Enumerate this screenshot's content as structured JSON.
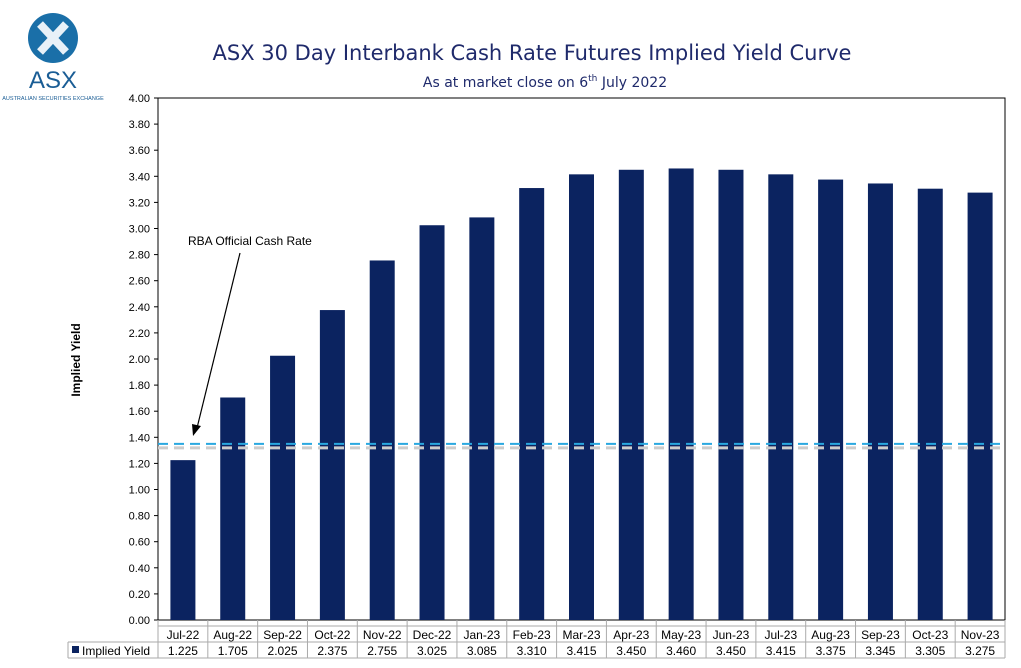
{
  "logo": {
    "text": "ASX",
    "subtext": "AUSTRALIAN SECURITIES EXCHANGE"
  },
  "chart_data": {
    "type": "bar",
    "title": "ASX 30 Day Interbank Cash Rate Futures Implied Yield Curve",
    "subtitle_pre": "As at market close on 6",
    "subtitle_sup": "th",
    "subtitle_post": " July 2022",
    "ylabel": "Implied Yield",
    "ylim": [
      0,
      4
    ],
    "ytick_step": 0.2,
    "yticks": [
      "0.00",
      "0.20",
      "0.40",
      "0.60",
      "0.80",
      "1.00",
      "1.20",
      "1.40",
      "1.60",
      "1.80",
      "2.00",
      "2.20",
      "2.40",
      "2.60",
      "2.80",
      "3.00",
      "3.20",
      "3.40",
      "3.60",
      "3.80",
      "4.00"
    ],
    "categories": [
      "Jul-22",
      "Aug-22",
      "Sep-22",
      "Oct-22",
      "Nov-22",
      "Dec-22",
      "Jan-23",
      "Feb-23",
      "Mar-23",
      "Apr-23",
      "May-23",
      "Jun-23",
      "Jul-23",
      "Aug-23",
      "Sep-23",
      "Oct-23",
      "Nov-23"
    ],
    "series": [
      {
        "name": "Implied Yield",
        "values": [
          1.225,
          1.705,
          2.025,
          2.375,
          2.755,
          3.025,
          3.085,
          3.31,
          3.415,
          3.45,
          3.46,
          3.45,
          3.415,
          3.375,
          3.345,
          3.305,
          3.275
        ],
        "labels": [
          "1.225",
          "1.705",
          "2.025",
          "2.375",
          "2.755",
          "3.025",
          "3.085",
          "3.310",
          "3.415",
          "3.450",
          "3.460",
          "3.450",
          "3.415",
          "3.375",
          "3.345",
          "3.305",
          "3.275"
        ],
        "color": "#0b2360"
      }
    ],
    "reference_line": {
      "label": "RBA Official Cash Rate",
      "value": 1.35,
      "color": "#29a8e0",
      "style": "dashed"
    },
    "grid": false,
    "legend": "data-table"
  }
}
